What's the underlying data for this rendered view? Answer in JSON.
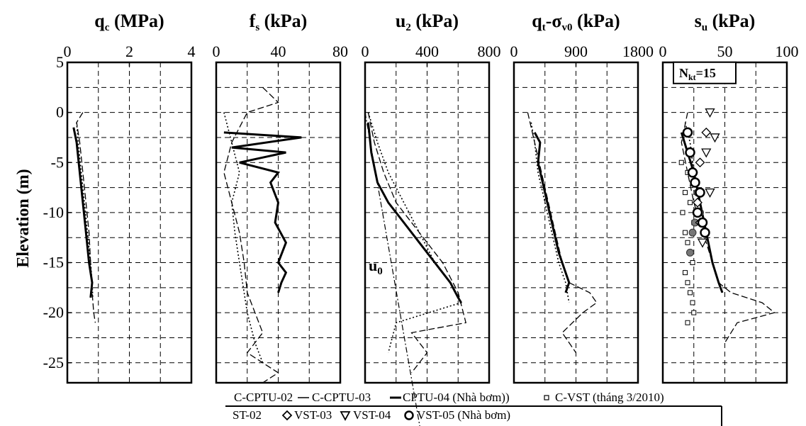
{
  "chart_data": [
    {
      "type": "line",
      "title_main": "q",
      "title_sub": "c",
      "title_unit": " (MPa)",
      "xlim": [
        0,
        4
      ],
      "xticks": [
        0,
        2,
        4
      ],
      "xtick_labels": [
        "0",
        "2",
        "4"
      ],
      "series": [
        {
          "name": "C-CPTU-02",
          "style": "dash",
          "x": [
            0.5,
            0.3,
            0.4,
            0.5,
            0.6,
            0.7,
            0.75,
            0.8,
            0.85,
            0.9
          ],
          "y": [
            0,
            -1,
            -3,
            -6,
            -9,
            -12,
            -15,
            -18,
            -20,
            -21
          ]
        },
        {
          "name": "C-CPTU-03",
          "style": "thin",
          "x": [
            0.3,
            0.35,
            0.45,
            0.55,
            0.65,
            0.75,
            0.8,
            0.82
          ],
          "y": [
            -1,
            -3,
            -6,
            -9,
            -12,
            -15,
            -17,
            -18.5
          ]
        },
        {
          "name": "C-CPTU-04 (Nhà bơm)",
          "style": "thick",
          "x": [
            0.2,
            0.3,
            0.4,
            0.5,
            0.6,
            0.7,
            0.8,
            0.75
          ],
          "y": [
            -1.5,
            -3,
            -6,
            -9,
            -12,
            -15,
            -17,
            -18.5
          ]
        }
      ],
      "grid": true
    },
    {
      "type": "line",
      "title_main": "f",
      "title_sub": "s",
      "title_unit": " (kPa)",
      "xlim": [
        0,
        80
      ],
      "xticks": [
        0,
        40,
        80
      ],
      "xtick_labels": [
        "0",
        "40",
        "80"
      ],
      "series": [
        {
          "name": "C-CPTU-02",
          "style": "dash",
          "x": [
            30,
            40,
            20,
            10,
            5,
            10,
            15,
            18,
            20,
            25,
            30,
            20,
            30,
            40,
            30
          ],
          "y": [
            2.5,
            1,
            0,
            -3,
            -6,
            -9,
            -12,
            -15,
            -18,
            -20,
            -22,
            -24,
            -25,
            -26,
            -27
          ]
        },
        {
          "name": "C-CPTU-03",
          "style": "thin",
          "x": [
            5,
            10,
            15,
            10,
            12,
            15,
            18,
            20,
            25,
            30
          ],
          "y": [
            0,
            -3,
            -6,
            -9,
            -12,
            -15,
            -18,
            -20,
            -23,
            -25
          ]
        },
        {
          "name": "C-CPTU-04 (Nhà bơm)",
          "style": "thick",
          "x": [
            5,
            55,
            10,
            45,
            15,
            40,
            35,
            40,
            38,
            45,
            40,
            45,
            42,
            40
          ],
          "y": [
            -2,
            -2.5,
            -3.5,
            -4,
            -5,
            -6,
            -7,
            -9,
            -11,
            -13,
            -15,
            -16,
            -17,
            -18
          ]
        }
      ],
      "grid": true
    },
    {
      "type": "line",
      "title_main": "u",
      "title_sub": "2",
      "title_unit": " (kPa)",
      "xlim": [
        0,
        800
      ],
      "xticks": [
        0,
        400,
        800
      ],
      "xtick_labels": [
        "0",
        "400",
        "800"
      ],
      "annotation": {
        "main": "u",
        "sub": "0"
      },
      "series": [
        {
          "name": "C-CPTU-02",
          "style": "dash",
          "x": [
            20,
            60,
            120,
            200,
            300,
            400,
            500,
            600,
            650,
            300,
            400,
            300
          ],
          "y": [
            0,
            -3,
            -6,
            -9,
            -11,
            -13,
            -15,
            -18,
            -21,
            -22,
            -24,
            -26
          ]
        },
        {
          "name": "C-CPTU-03",
          "style": "thin",
          "x": [
            20,
            80,
            150,
            250,
            350,
            450,
            550,
            620,
            200,
            150
          ],
          "y": [
            0,
            -3,
            -6,
            -9,
            -12,
            -15,
            -17,
            -19,
            -21,
            -24
          ]
        },
        {
          "name": "C-CPTU-04 (Nhà bơm)",
          "style": "thick",
          "x": [
            20,
            40,
            80,
            150,
            250,
            350,
            450,
            550,
            600,
            620
          ],
          "y": [
            -1,
            -4,
            -7,
            -9,
            -11,
            -13,
            -15,
            -17,
            -18.5,
            -19
          ]
        },
        {
          "name": "u0",
          "style": "dashdot",
          "x": [
            0,
            90,
            180,
            270,
            360
          ],
          "y": [
            0,
            -8,
            -16,
            -24,
            -32
          ]
        }
      ],
      "grid": true
    },
    {
      "type": "line",
      "title_main": "q",
      "title_sub": "t",
      "title_unit": "-σ",
      "title_sub2": "v0",
      "title_unit2": " (kPa)",
      "xlim": [
        0,
        1800
      ],
      "xticks": [
        0,
        900,
        1800
      ],
      "xtick_labels": [
        "0",
        "900",
        "1800"
      ],
      "series": [
        {
          "name": "C-CPTU-02",
          "style": "dash",
          "x": [
            200,
            300,
            400,
            500,
            600,
            700,
            800,
            1100,
            1200,
            1000,
            700,
            900
          ],
          "y": [
            0,
            -3,
            -6,
            -9,
            -12,
            -15,
            -17,
            -18,
            -19,
            -20,
            -22,
            -24
          ]
        },
        {
          "name": "C-CPTU-03",
          "style": "thin",
          "x": [
            250,
            300,
            350,
            450,
            550,
            650,
            750,
            800
          ],
          "y": [
            -1,
            -3,
            -6,
            -9,
            -12,
            -15,
            -17,
            -19
          ]
        },
        {
          "name": "C-CPTU-04 (Nhà bơm)",
          "style": "thick",
          "x": [
            300,
            380,
            350,
            450,
            550,
            650,
            750,
            800,
            750
          ],
          "y": [
            -2,
            -3,
            -5,
            -8,
            -11,
            -14,
            -16,
            -17,
            -18
          ]
        }
      ],
      "grid": true
    },
    {
      "type": "line",
      "title_main": "s",
      "title_sub": "u",
      "title_unit": " (kPa)",
      "xlim": [
        0,
        100
      ],
      "xticks": [
        0,
        50,
        100
      ],
      "xtick_labels": [
        "0",
        "50",
        "100"
      ],
      "annotation": {
        "main": "N",
        "sub": "kt",
        "rest": "=15"
      },
      "series": [
        {
          "name": "C-CPTU-02",
          "style": "dash",
          "x": [
            20,
            15,
            20,
            25,
            30,
            35,
            40,
            45,
            55,
            80,
            90,
            60,
            50
          ],
          "y": [
            0,
            -3,
            -6,
            -9,
            -11,
            -13,
            -15,
            -17,
            -18,
            -19,
            -20,
            -21,
            -23
          ]
        },
        {
          "name": "C-CPTU-03",
          "style": "thin",
          "x": [
            18,
            22,
            25,
            30,
            35,
            40,
            45,
            48
          ],
          "y": [
            -1,
            -3,
            -6,
            -9,
            -12,
            -15,
            -17,
            -18
          ]
        },
        {
          "name": "C-CPTU-04 (Nhà bơm)",
          "style": "thick",
          "x": [
            15,
            20,
            25,
            30,
            35,
            40,
            45,
            48
          ],
          "y": [
            -2,
            -4,
            -6,
            -9,
            -12,
            -15,
            -17,
            -18
          ]
        }
      ],
      "points": [
        {
          "name": "C-VST (tháng 3/2010)",
          "marker": "square",
          "x": [
            15,
            20,
            18,
            22,
            16,
            25,
            18,
            20,
            22,
            24,
            18,
            20,
            22,
            24,
            25,
            20
          ],
          "y": [
            -5,
            -6,
            -8,
            -9,
            -10,
            -11,
            -12,
            -13,
            -14,
            -15,
            -16,
            -17,
            -18,
            -19,
            -20,
            -21
          ]
        },
        {
          "name": "VST-02",
          "marker": "filled-circle",
          "x": [
            22,
            25,
            28,
            30,
            26,
            24,
            22
          ],
          "y": [
            -4,
            -6,
            -8,
            -10,
            -11,
            -12,
            -14
          ]
        },
        {
          "name": "VST-03",
          "marker": "diamond",
          "x": [
            35,
            30,
            28,
            30
          ],
          "y": [
            -2,
            -5,
            -9,
            -11
          ]
        },
        {
          "name": "VST-04",
          "marker": "triangle",
          "x": [
            38,
            42,
            35,
            38,
            32
          ],
          "y": [
            0,
            -2.5,
            -4,
            -8,
            -13
          ]
        },
        {
          "name": "VST-05 (Nhà bơm)",
          "marker": "open-circle",
          "x": [
            20,
            22,
            24,
            26,
            30,
            28,
            32,
            34
          ],
          "y": [
            -2,
            -4,
            -6,
            -7,
            -8,
            -10,
            -11,
            -12
          ]
        }
      ],
      "grid": true
    }
  ],
  "y_axis": {
    "label": "Elevation (m)",
    "ylim": [
      -27,
      5
    ],
    "ticks": [
      5,
      0,
      -5,
      -10,
      -15,
      -20,
      -25
    ],
    "tick_labels": [
      "5",
      "0",
      "-5",
      "-10",
      "-15",
      "-20",
      "-25"
    ]
  },
  "legend": {
    "row1": [
      {
        "label": "C-CPTU-02",
        "symbol": "dash"
      },
      {
        "label": "C-CPTU-03",
        "symbol": "thin"
      },
      {
        "label": "CPTU-04 (Nhà bơm))",
        "symbol": "thick"
      },
      {
        "label": "C-VST (tháng 3/2010)",
        "symbol": "square"
      }
    ],
    "row2": [
      {
        "label": "ST-02",
        "symbol": "none"
      },
      {
        "label": "VST-03",
        "symbol": "diamond"
      },
      {
        "label": "VST-04",
        "symbol": "triangle"
      },
      {
        "label": "VST-05 (Nhà bơm)",
        "symbol": "open-circle"
      }
    ]
  }
}
